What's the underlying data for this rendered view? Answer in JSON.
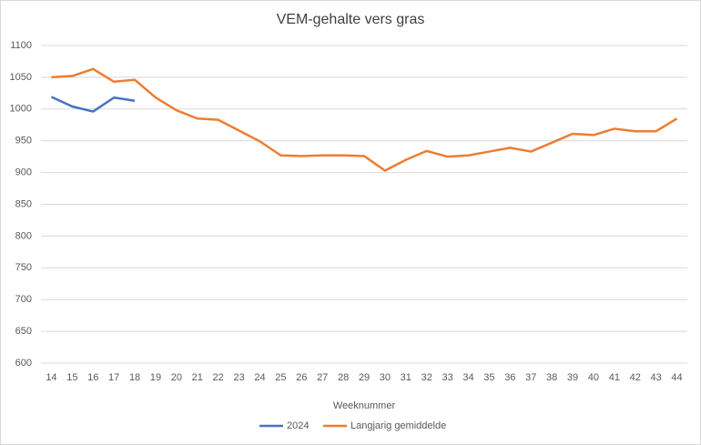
{
  "chart_data": {
    "type": "line",
    "title": "VEM-gehalte vers gras",
    "xlabel": "Weeknummer",
    "categories": [
      14,
      15,
      16,
      17,
      18,
      19,
      20,
      21,
      22,
      23,
      24,
      25,
      26,
      27,
      28,
      29,
      30,
      31,
      32,
      33,
      34,
      35,
      36,
      37,
      38,
      39,
      40,
      41,
      42,
      43,
      44
    ],
    "series": [
      {
        "name": "2024",
        "color": "#4472c4",
        "values": [
          1019,
          1004,
          996,
          1018,
          1013,
          null,
          null,
          null,
          null,
          null,
          null,
          null,
          null,
          null,
          null,
          null,
          null,
          null,
          null,
          null,
          null,
          null,
          null,
          null,
          null,
          null,
          null,
          null,
          null,
          null,
          null
        ]
      },
      {
        "name": "Langjarig gemiddelde",
        "color": "#ed7d31",
        "values": [
          1050,
          1052,
          1063,
          1043,
          1046,
          1018,
          998,
          985,
          983,
          966,
          949,
          927,
          926,
          927,
          927,
          926,
          903,
          920,
          934,
          925,
          927,
          933,
          939,
          933,
          947,
          961,
          959,
          969,
          965,
          965,
          985
        ]
      }
    ],
    "ylim": [
      600,
      1100
    ],
    "yticks": [
      600,
      650,
      700,
      750,
      800,
      850,
      900,
      950,
      1000,
      1050,
      1100
    ],
    "grid": true,
    "legend": "bottom"
  }
}
